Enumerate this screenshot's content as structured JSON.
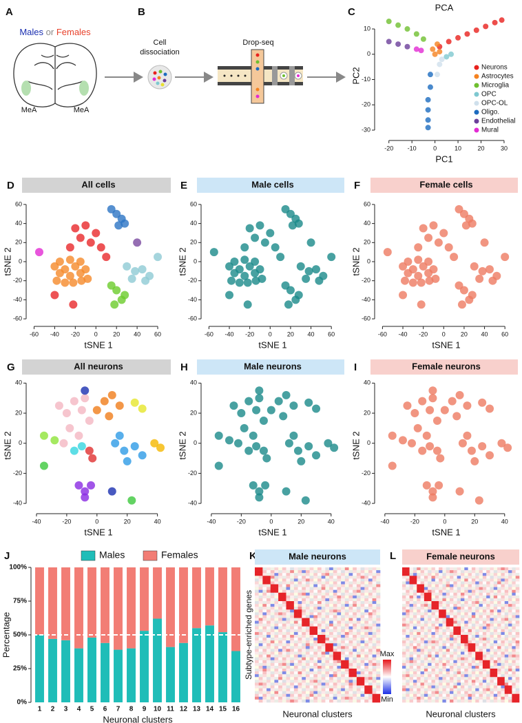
{
  "letters": [
    "A",
    "B",
    "C",
    "D",
    "E",
    "F",
    "G",
    "H",
    "I",
    "J",
    "K",
    "L"
  ],
  "diagram": {
    "sex_words": [
      "Males",
      "or",
      "Females"
    ],
    "region": [
      "MeA",
      "MeA"
    ],
    "step1": [
      "Cell",
      "dissociation"
    ],
    "step2": "Drop-seq"
  },
  "heatmaps": {
    "ylabel": "Subtype-enriched genes",
    "xlabel": "Neuronal clusters",
    "max_label": "Max",
    "min_label": "Min",
    "panels": [
      {
        "title": "Male neurons",
        "title_background": "#cde6f7",
        "title_color": "#1a2a8a"
      },
      {
        "title": "Female neurons",
        "title_background": "#f8d0cc",
        "title_color": "#b0302a"
      }
    ]
  },
  "chart_data": [
    {
      "type": "scatter",
      "title": "PCA",
      "xlabel": "PC1",
      "ylabel": "PC2",
      "xlim": [
        -25,
        33
      ],
      "ylim": [
        -33,
        16
      ],
      "xticks": [
        -20,
        -10,
        0,
        10,
        20,
        30
      ],
      "yticks": [
        -30,
        -20,
        -10,
        0,
        10
      ],
      "legend": "right",
      "series": [
        {
          "name": "Neurons",
          "color": "#e8211d",
          "x": [
            2,
            6,
            10,
            14,
            18,
            22,
            26,
            29
          ],
          "y": [
            3,
            5,
            6.5,
            8,
            9.5,
            11,
            12.5,
            13.5
          ]
        },
        {
          "name": "Astrocytes",
          "color": "#f58220",
          "x": [
            -1,
            0,
            1,
            2
          ],
          "y": [
            2,
            0,
            4,
            1
          ]
        },
        {
          "name": "Microglia",
          "color": "#6fbf2f",
          "x": [
            -20,
            -16,
            -12,
            -8,
            -5
          ],
          "y": [
            13,
            11.5,
            10,
            8,
            6
          ]
        },
        {
          "name": "OPC",
          "color": "#7ec8d0",
          "x": [
            5,
            7
          ],
          "y": [
            -1,
            0
          ]
        },
        {
          "name": "OPC-OL",
          "color": "#cfe0ec",
          "x": [
            1,
            2,
            3
          ],
          "y": [
            -8,
            -4,
            -2
          ]
        },
        {
          "name": "Oligo.",
          "color": "#1c6bbf",
          "x": [
            -2,
            -2,
            -3,
            -3,
            -3,
            -3
          ],
          "y": [
            -8,
            -13,
            -18,
            -22,
            -26,
            -29
          ]
        },
        {
          "name": "Endothelial",
          "color": "#6b3f9a",
          "x": [
            -20,
            -16,
            -12
          ],
          "y": [
            5,
            4,
            3
          ]
        },
        {
          "name": "Mural",
          "color": "#e22bd3",
          "x": [
            -8,
            -6
          ],
          "y": [
            2,
            1.5
          ]
        }
      ]
    },
    {
      "type": "scatter",
      "title": "All cells",
      "title_background": "#d3d3d3",
      "title_color": "#111111",
      "xlabel": "tSNE 1",
      "ylabel": "tSNE 2",
      "xlim": [
        -65,
        70
      ],
      "ylim": [
        -65,
        65
      ],
      "xticks": [
        -60,
        -40,
        -20,
        0,
        20,
        40,
        60
      ],
      "yticks": [
        -60,
        -40,
        -20,
        0,
        20,
        40,
        60
      ],
      "series": [
        {
          "color": "#f5892a",
          "x": [
            -40,
            -35,
            -30,
            -25,
            -20,
            -15,
            -10,
            -38,
            -30,
            -22,
            -14,
            -8,
            -35,
            -25,
            -15
          ],
          "y": [
            -5,
            -12,
            -8,
            -15,
            -5,
            -12,
            -8,
            -20,
            -22,
            -22,
            -20,
            -18,
            0,
            2,
            0
          ]
        },
        {
          "color": "#e8282a",
          "x": [
            -20,
            -10,
            0,
            -15,
            -5,
            5,
            -25,
            10,
            -22,
            -40
          ],
          "y": [
            35,
            38,
            30,
            25,
            20,
            15,
            15,
            5,
            -45,
            -35
          ]
        },
        {
          "color": "#2c74c4",
          "x": [
            15,
            20,
            25,
            28,
            22
          ],
          "y": [
            55,
            50,
            45,
            40,
            38
          ]
        },
        {
          "color": "#6ccc2c",
          "x": [
            15,
            20,
            25,
            18,
            28
          ],
          "y": [
            -25,
            -30,
            -40,
            -45,
            -35
          ]
        },
        {
          "color": "#8ecad4",
          "x": [
            30,
            38,
            45,
            52,
            35,
            48,
            60
          ],
          "y": [
            -5,
            -10,
            -8,
            -15,
            -18,
            -20,
            5
          ]
        },
        {
          "color": "#7b4aa0",
          "x": [
            40
          ],
          "y": [
            20
          ]
        },
        {
          "color": "#e22bd3",
          "x": [
            -55
          ],
          "y": [
            10
          ]
        }
      ]
    },
    {
      "type": "scatter",
      "title": "Male cells",
      "title_background": "#cde6f7",
      "title_color": "#1a2a8a",
      "xlabel": "tSNE 1",
      "ylabel": "tSNE 2",
      "xlim": [
        -65,
        70
      ],
      "ylim": [
        -65,
        65
      ],
      "xticks": [
        -60,
        -40,
        -20,
        0,
        20,
        40,
        60
      ],
      "yticks": [
        -60,
        -40,
        -20,
        0,
        20,
        40,
        60
      ],
      "series": [
        {
          "color": "#1a8a8a",
          "x": [
            -40,
            -35,
            -30,
            -25,
            -20,
            -15,
            -10,
            -38,
            -30,
            -22,
            -14,
            -8,
            -35,
            -25,
            -15,
            -20,
            -10,
            0,
            -15,
            -5,
            5,
            -25,
            10,
            -22,
            -40,
            15,
            20,
            25,
            28,
            22,
            15,
            20,
            25,
            18,
            28,
            30,
            38,
            45,
            52,
            35,
            48,
            60,
            40,
            -55
          ],
          "y": [
            -5,
            -12,
            -8,
            -15,
            -5,
            -12,
            -8,
            -20,
            -22,
            -22,
            -20,
            -18,
            0,
            2,
            0,
            35,
            38,
            30,
            25,
            20,
            15,
            15,
            5,
            -45,
            -35,
            55,
            50,
            45,
            40,
            38,
            -25,
            -30,
            -40,
            -45,
            -35,
            -5,
            -10,
            -8,
            -15,
            -18,
            -20,
            5,
            20,
            10
          ]
        }
      ]
    },
    {
      "type": "scatter",
      "title": "Female cells",
      "title_background": "#f8d0cc",
      "title_color": "#b0302a",
      "xlabel": "tSNE 1",
      "ylabel": "tSNE 2",
      "xlim": [
        -65,
        70
      ],
      "ylim": [
        -65,
        65
      ],
      "xticks": [
        -60,
        -40,
        -20,
        0,
        20,
        40,
        60
      ],
      "yticks": [
        -60,
        -40,
        -20,
        0,
        20,
        40,
        60
      ],
      "series": [
        {
          "color": "#ee7a62",
          "x": [
            -40,
            -35,
            -30,
            -25,
            -20,
            -15,
            -10,
            -38,
            -30,
            -22,
            -14,
            -8,
            -35,
            -25,
            -15,
            -20,
            -10,
            0,
            -15,
            -5,
            5,
            -25,
            10,
            -22,
            -40,
            15,
            20,
            25,
            28,
            22,
            15,
            20,
            25,
            18,
            28,
            30,
            38,
            45,
            52,
            35,
            48,
            60,
            40,
            -55
          ],
          "y": [
            -5,
            -12,
            -8,
            -15,
            -5,
            -12,
            -8,
            -20,
            -22,
            -22,
            -20,
            -18,
            0,
            2,
            0,
            35,
            38,
            30,
            25,
            20,
            15,
            15,
            5,
            -45,
            -35,
            55,
            50,
            45,
            40,
            38,
            -25,
            -30,
            -40,
            -45,
            -35,
            -5,
            -10,
            -8,
            -15,
            -18,
            -20,
            5,
            20,
            10
          ]
        }
      ]
    },
    {
      "type": "scatter",
      "title": "All neurons",
      "title_background": "#d3d3d3",
      "title_color": "#111111",
      "xlabel": "tSNE 1",
      "ylabel": "tSNE 2",
      "xlim": [
        -45,
        47
      ],
      "ylim": [
        -45,
        42
      ],
      "xticks": [
        -40,
        -20,
        0,
        20,
        40
      ],
      "yticks": [
        -40,
        -20,
        0,
        20,
        40
      ],
      "series": [
        {
          "color": "#f4b6c2",
          "x": [
            -25,
            -20,
            -15,
            -10,
            -5,
            -18,
            -12,
            -22,
            -8
          ],
          "y": [
            25,
            20,
            28,
            22,
            15,
            10,
            5,
            0,
            30
          ]
        },
        {
          "color": "#f07d1a",
          "x": [
            0,
            5,
            10,
            15,
            8
          ],
          "y": [
            22,
            28,
            32,
            25,
            18
          ]
        },
        {
          "color": "#e6e62a",
          "x": [
            25,
            30
          ],
          "y": [
            27,
            23
          ]
        },
        {
          "color": "#2e9be6",
          "x": [
            12,
            18,
            25,
            30,
            20,
            15
          ],
          "y": [
            0,
            -5,
            -2,
            -8,
            -12,
            5
          ]
        },
        {
          "color": "#f5b800",
          "x": [
            38,
            42
          ],
          "y": [
            0,
            -3
          ]
        },
        {
          "color": "#8a2be2",
          "x": [
            -12,
            -8,
            -4,
            -8
          ],
          "y": [
            -28,
            -32,
            -28,
            -36
          ]
        },
        {
          "color": "#3cc83c",
          "x": [
            -35,
            23
          ],
          "y": [
            -15,
            -38
          ]
        },
        {
          "color": "#8fe33a",
          "x": [
            -35,
            -28
          ],
          "y": [
            5,
            2
          ]
        },
        {
          "color": "#34d6e0",
          "x": [
            -15,
            -10
          ],
          "y": [
            -5,
            -2
          ]
        },
        {
          "color": "#e0302f",
          "x": [
            -5,
            -3
          ],
          "y": [
            -5,
            -10
          ]
        },
        {
          "color": "#1a2fb0",
          "x": [
            -8,
            10
          ],
          "y": [
            35,
            -32
          ]
        }
      ]
    },
    {
      "type": "scatter",
      "title": "Male neurons",
      "title_background": "#cde6f7",
      "title_color": "#1a2a8a",
      "xlabel": "tSNE 1",
      "ylabel": "tSNE 2",
      "xlim": [
        -45,
        47
      ],
      "ylim": [
        -45,
        42
      ],
      "xticks": [
        -40,
        -20,
        0,
        20,
        40
      ],
      "yticks": [
        -40,
        -20,
        0,
        20,
        40
      ],
      "series": [
        {
          "color": "#1a8a8a",
          "x": [
            -25,
            -20,
            -15,
            -10,
            -5,
            -18,
            -12,
            -22,
            -8,
            0,
            5,
            10,
            15,
            8,
            25,
            30,
            12,
            18,
            25,
            30,
            20,
            15,
            38,
            42,
            -12,
            -8,
            -4,
            -8,
            -35,
            23,
            -35,
            -28,
            -15,
            -10,
            -5,
            -3,
            -8,
            10
          ],
          "y": [
            25,
            20,
            28,
            22,
            15,
            10,
            5,
            0,
            30,
            22,
            28,
            32,
            25,
            18,
            27,
            23,
            0,
            -5,
            -2,
            -8,
            -12,
            5,
            0,
            -3,
            -28,
            -32,
            -28,
            -36,
            -15,
            -38,
            5,
            2,
            -5,
            -2,
            -5,
            -10,
            35,
            -32
          ]
        }
      ]
    },
    {
      "type": "scatter",
      "title": "Female neurons",
      "title_background": "#f8d0cc",
      "title_color": "#b0302a",
      "xlabel": "tSNE 1",
      "ylabel": "tSNE 2",
      "xlim": [
        -45,
        47
      ],
      "ylim": [
        -45,
        42
      ],
      "xticks": [
        -40,
        -20,
        0,
        20,
        40
      ],
      "yticks": [
        -40,
        -20,
        0,
        20,
        40
      ],
      "series": [
        {
          "color": "#ee7a62",
          "x": [
            -25,
            -20,
            -15,
            -10,
            -5,
            -18,
            -12,
            -22,
            -8,
            0,
            5,
            10,
            15,
            8,
            25,
            30,
            12,
            18,
            25,
            30,
            20,
            15,
            38,
            42,
            -12,
            -8,
            -4,
            -8,
            -35,
            23,
            -35,
            -28,
            -15,
            -10,
            -5,
            -3,
            -8,
            10
          ],
          "y": [
            25,
            20,
            28,
            22,
            15,
            10,
            5,
            0,
            30,
            22,
            28,
            32,
            25,
            18,
            27,
            23,
            0,
            -5,
            -2,
            -8,
            -12,
            5,
            0,
            -3,
            -28,
            -32,
            -28,
            -36,
            -15,
            -38,
            5,
            2,
            -5,
            -2,
            -5,
            -10,
            35,
            -32
          ]
        }
      ]
    },
    {
      "type": "bar",
      "stacked": true,
      "xlabel": "Neuronal clusters",
      "ylabel": "Percentage",
      "categories": [
        "1",
        "2",
        "3",
        "4",
        "5",
        "6",
        "7",
        "8",
        "9",
        "10",
        "11",
        "12",
        "13",
        "14",
        "15",
        "16"
      ],
      "ylim": [
        0,
        100
      ],
      "yticks": [
        {
          "value": 0,
          "label": "0%"
        },
        {
          "value": 25,
          "label": "25%"
        },
        {
          "value": 50,
          "label": "50%"
        },
        {
          "value": 75,
          "label": "75%"
        },
        {
          "value": 100,
          "label": "100%"
        }
      ],
      "ref_line": 50,
      "legend": "top",
      "series": [
        {
          "name": "Males",
          "color": "#1fbdb8",
          "label_color": "#1a2a9a",
          "values": [
            50,
            47,
            46,
            40,
            48,
            44,
            39,
            40,
            53,
            62,
            41,
            44,
            55,
            57,
            52,
            38
          ]
        },
        {
          "name": "Females",
          "color": "#f27d75",
          "label_color": "#c0392b",
          "values": [
            50,
            53,
            54,
            60,
            52,
            56,
            61,
            60,
            47,
            38,
            59,
            56,
            45,
            43,
            48,
            62
          ]
        }
      ]
    }
  ]
}
